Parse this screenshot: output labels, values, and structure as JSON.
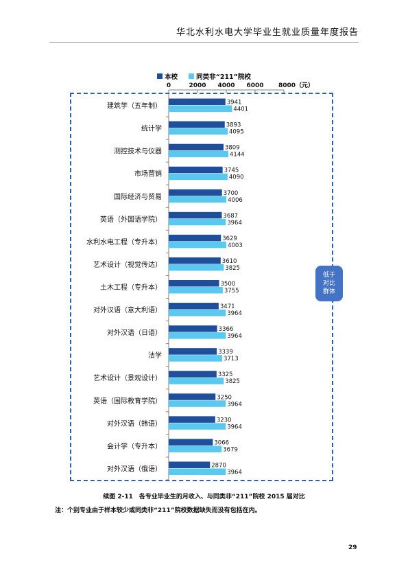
{
  "header": {
    "title": "华北水利水电大学毕业生就业质量年度报告"
  },
  "colors": {
    "school": "#1f4e9b",
    "peer": "#5bc8ef",
    "frame": "#2f5fa8",
    "tag_bg": "#4472c4"
  },
  "chart_data": {
    "type": "bar",
    "orientation": "horizontal",
    "categories": [
      "建筑学（五年制）",
      "统计学",
      "测控技术与仪器",
      "市场营销",
      "国际经济与贸易",
      "英语（外国语学院）",
      "水利水电工程（专升本）",
      "艺术设计（视觉传达）",
      "土木工程（专升本）",
      "对外汉语（意大利语）",
      "对外汉语（日语）",
      "法学",
      "艺术设计（景观设计）",
      "英语（国际教育学院）",
      "对外汉语（韩语）",
      "会计学（专升本）",
      "对外汉语（俄语）"
    ],
    "series": [
      {
        "name": "本校",
        "values": [
          3941,
          3893,
          3809,
          3745,
          3700,
          3687,
          3629,
          3610,
          3500,
          3471,
          3366,
          3339,
          3325,
          3250,
          3230,
          3066,
          2870
        ]
      },
      {
        "name": "同类非“211”院校",
        "values": [
          4401,
          4095,
          4144,
          4090,
          4006,
          3964,
          4003,
          3825,
          3755,
          3964,
          3964,
          3713,
          3825,
          3964,
          3964,
          3679,
          3964
        ]
      }
    ],
    "x_ticks": [
      "0",
      "2000",
      "4000",
      "6000",
      "8000（元）"
    ],
    "xlim": [
      0,
      8000
    ],
    "axis_position": "top",
    "legend_position": "top",
    "grid": false,
    "annotation": [
      "低于",
      "对比",
      "群体"
    ]
  },
  "caption": "续图 2-11　各专业毕业生的月收入、与同类非“211”院校 2015 届对比",
  "note": "注：个别专业由于样本较少或同类非“211”院校数据缺失而没有包括在内。",
  "page_number": "29"
}
